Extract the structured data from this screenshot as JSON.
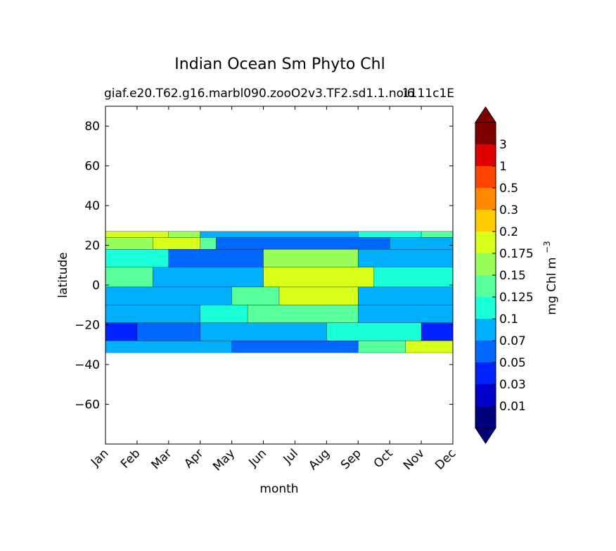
{
  "chart_data": {
    "type": "filled-contour",
    "title": "Indian Ocean Sm Phyto Chl",
    "subtitle_left": "giaf.e20.T62.g16.marbl090.zooO2v3.TF2.sd1.1.noi6",
    "subtitle_right": "1111c1E",
    "xlabel": "month",
    "ylabel": "latitude",
    "x_ticks": [
      "Jan",
      "Feb",
      "Mar",
      "Apr",
      "May",
      "Jun",
      "Jul",
      "Aug",
      "Sep",
      "Oct",
      "Nov",
      "Dec"
    ],
    "ylim": [
      -80,
      90
    ],
    "y_ticks": [
      80,
      60,
      40,
      20,
      0,
      -20,
      -40,
      -60
    ],
    "y_tick_labels": [
      "80",
      "60",
      "40",
      "20",
      "0",
      "−20",
      "−40",
      "−60"
    ],
    "data_lat_range": [
      -34,
      27
    ],
    "colorbar": {
      "label": "mg Chl m",
      "label_exponent": "−3",
      "extend": "both",
      "levels": [
        "0.01",
        "0.03",
        "0.05",
        "0.07",
        "0.1",
        "0.125",
        "0.15",
        "0.175",
        "0.2",
        "0.3",
        "0.5",
        "1",
        "3"
      ],
      "colors": [
        "#00007f",
        "#0000c8",
        "#0022ff",
        "#0068ff",
        "#00b0ff",
        "#19ffd8",
        "#58ff9a",
        "#98ff5a",
        "#d8ff19",
        "#ffcc00",
        "#ff8800",
        "#ff4400",
        "#e00000",
        "#800000"
      ],
      "under_color": "#00007f",
      "over_color": "#800000"
    },
    "grid": false,
    "field_description_rows": [
      {
        "lat": 26,
        "bands": [
          [
            0,
            2,
            8
          ],
          [
            2,
            3,
            7
          ],
          [
            3,
            8,
            4
          ],
          [
            8,
            10,
            5
          ],
          [
            10,
            11,
            6
          ]
        ]
      },
      {
        "lat": 22,
        "bands": [
          [
            0,
            1.5,
            7
          ],
          [
            1.5,
            3,
            8
          ],
          [
            3,
            3.5,
            6
          ],
          [
            3.5,
            9,
            3
          ],
          [
            9,
            11,
            4
          ]
        ]
      },
      {
        "lat": 14,
        "bands": [
          [
            0,
            2,
            5
          ],
          [
            2,
            5,
            3
          ],
          [
            5,
            8,
            7
          ],
          [
            8,
            11,
            4
          ]
        ]
      },
      {
        "lat": 4,
        "bands": [
          [
            0,
            1.5,
            6
          ],
          [
            1.5,
            5,
            4
          ],
          [
            5,
            8.5,
            8
          ],
          [
            8.5,
            11,
            5
          ]
        ]
      },
      {
        "lat": -6,
        "bands": [
          [
            0,
            4,
            4
          ],
          [
            4,
            5.5,
            6
          ],
          [
            5.5,
            8,
            8
          ],
          [
            8,
            11,
            4
          ]
        ]
      },
      {
        "lat": -14,
        "bands": [
          [
            0,
            3,
            4
          ],
          [
            3,
            4.5,
            5
          ],
          [
            4.5,
            8,
            6
          ],
          [
            8,
            11,
            4
          ]
        ]
      },
      {
        "lat": -24,
        "bands": [
          [
            0,
            1,
            2
          ],
          [
            1,
            3,
            3
          ],
          [
            3,
            7,
            4
          ],
          [
            7,
            10,
            5
          ],
          [
            10,
            11,
            2
          ]
        ]
      },
      {
        "lat": -32,
        "bands": [
          [
            0,
            4,
            4
          ],
          [
            4,
            8,
            3
          ],
          [
            8,
            9.5,
            6
          ],
          [
            9.5,
            11,
            8
          ]
        ]
      }
    ]
  }
}
